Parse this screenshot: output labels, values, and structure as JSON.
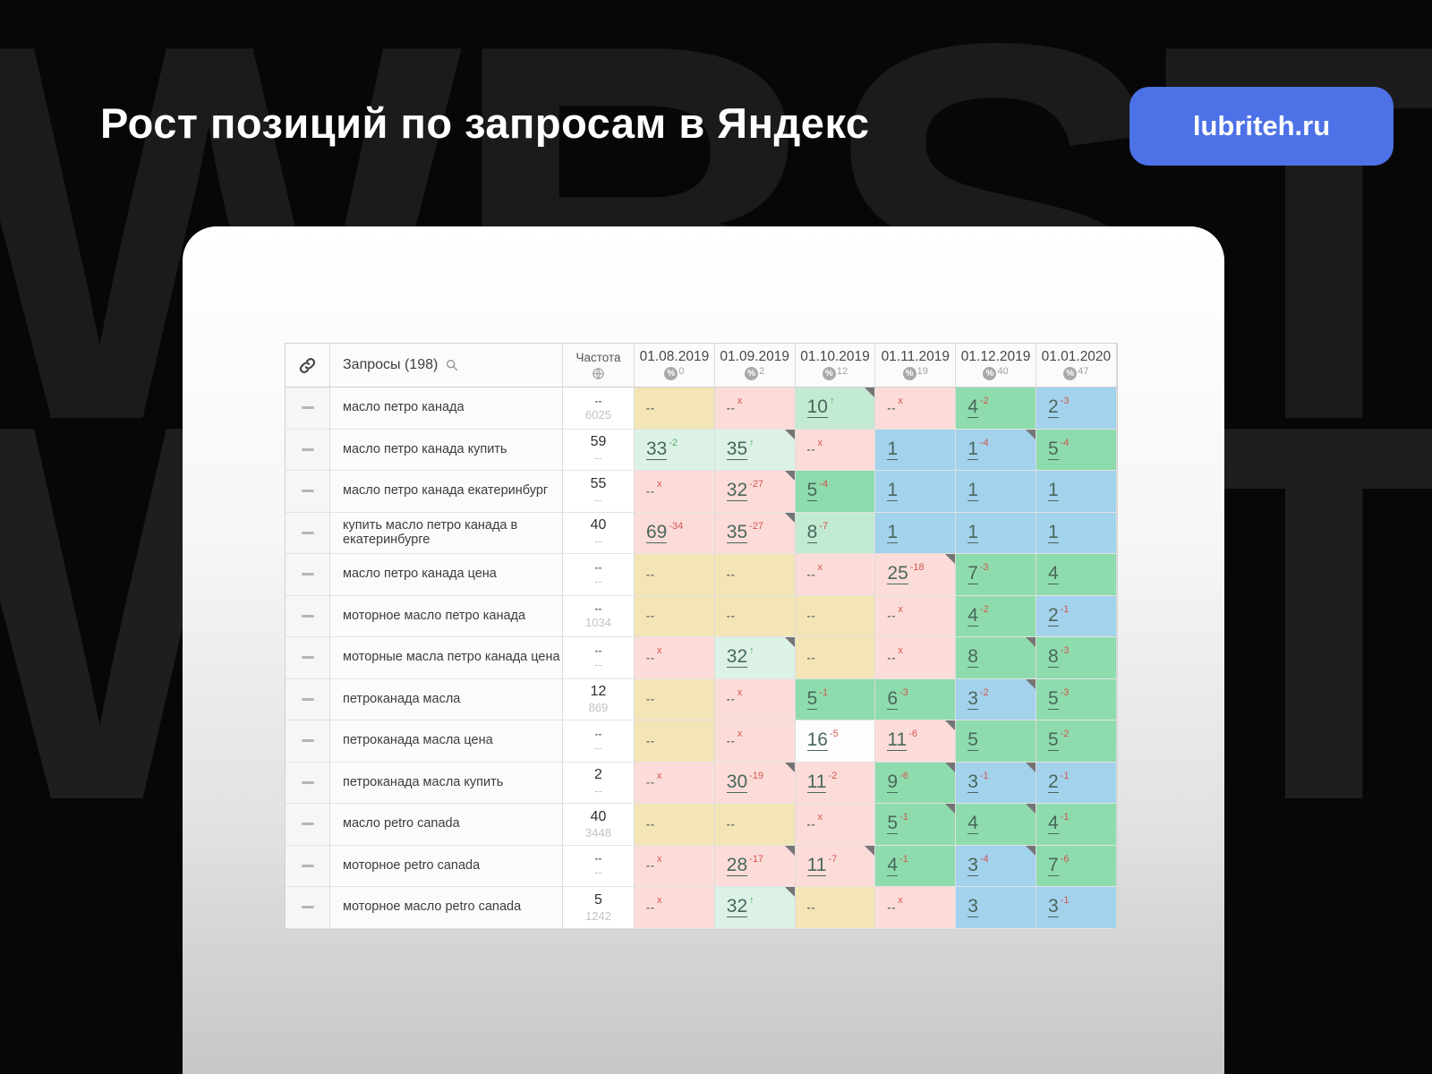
{
  "page": {
    "title": "Рост позиций по запросам в Яндекс",
    "badge": "lubriteh.ru",
    "watermark": "WBSTR",
    "accent_color": "#4d71e6"
  },
  "icons": {
    "link": "link-icon",
    "search": "search-icon",
    "globe": "globe-icon",
    "percent": "percent-icon",
    "row_handle": "row-handle-icon",
    "corner_flag": "corner-flag-marker",
    "up_arrow": "↑"
  },
  "table": {
    "palette": {
      "yellow": "#f3e5b5",
      "pink": "#fcdcd9",
      "mint": "#dcf2e6",
      "soft": "#c3ead2",
      "green": "#8edcad",
      "blue": "#a3d2ec",
      "white": "#fdfdfd"
    },
    "header": {
      "queries_label": "Запросы (198)",
      "freq_label": "Частота",
      "dates": [
        {
          "date": "01.08.2019",
          "percent": "0"
        },
        {
          "date": "01.09.2019",
          "percent": "2"
        },
        {
          "date": "01.10.2019",
          "percent": "12"
        },
        {
          "date": "01.11.2019",
          "percent": "19"
        },
        {
          "date": "01.12.2019",
          "percent": "40"
        },
        {
          "date": "01.01.2020",
          "percent": "47"
        }
      ]
    },
    "rows": [
      {
        "query": "масло петро канада",
        "freq": "--",
        "freq2": "6025",
        "cells": [
          {
            "v": "--",
            "bg": "yellow"
          },
          {
            "v": "--",
            "sup": "x",
            "supc": "red",
            "bg": "pink"
          },
          {
            "v": "10",
            "sup": "↑",
            "supc": "green",
            "bg": "soft",
            "flag": true,
            "link": true
          },
          {
            "v": "--",
            "sup": "x",
            "supc": "red",
            "bg": "pink"
          },
          {
            "v": "4",
            "sup": "-2",
            "supc": "red",
            "bg": "green",
            "tex": true,
            "link": true
          },
          {
            "v": "2",
            "sup": "-3",
            "supc": "red",
            "bg": "blue",
            "link": true
          }
        ]
      },
      {
        "query": "масло петро канада купить",
        "freq": "59",
        "freq2": "--",
        "cells": [
          {
            "v": "33",
            "sup": "-2",
            "supc": "green",
            "bg": "mint",
            "link": true
          },
          {
            "v": "35",
            "sup": "↑",
            "supc": "green",
            "bg": "mint",
            "flag": true,
            "link": true
          },
          {
            "v": "--",
            "sup": "x",
            "supc": "red",
            "bg": "pink"
          },
          {
            "v": "1",
            "bg": "blue",
            "link": true
          },
          {
            "v": "1",
            "sup": "-4",
            "supc": "red",
            "bg": "blue",
            "flag": true,
            "link": true
          },
          {
            "v": "5",
            "sup": "-4",
            "supc": "red",
            "bg": "green",
            "link": true
          }
        ]
      },
      {
        "query": "масло петро канада екатеринбург",
        "freq": "55",
        "freq2": "--",
        "cells": [
          {
            "v": "--",
            "sup": "x",
            "supc": "red",
            "bg": "pink"
          },
          {
            "v": "32",
            "sup": "-27",
            "supc": "red",
            "bg": "pink",
            "flag": true,
            "link": true
          },
          {
            "v": "5",
            "sup": "-4",
            "supc": "red",
            "bg": "green",
            "link": true
          },
          {
            "v": "1",
            "bg": "blue",
            "link": true
          },
          {
            "v": "1",
            "bg": "blue",
            "link": true
          },
          {
            "v": "1",
            "bg": "blue",
            "link": true
          }
        ]
      },
      {
        "query": "купить масло петро канада в екатеринбурге",
        "freq": "40",
        "freq2": "--",
        "cells": [
          {
            "v": "69",
            "sup": "-34",
            "supc": "red",
            "bg": "pink",
            "link": true
          },
          {
            "v": "35",
            "sup": "-27",
            "supc": "red",
            "bg": "pink",
            "flag": true,
            "link": true
          },
          {
            "v": "8",
            "sup": "-7",
            "supc": "red",
            "bg": "soft",
            "link": true
          },
          {
            "v": "1",
            "bg": "blue",
            "link": true
          },
          {
            "v": "1",
            "bg": "blue",
            "link": true
          },
          {
            "v": "1",
            "bg": "blue",
            "link": true
          }
        ]
      },
      {
        "query": "масло петро канада цена",
        "freq": "--",
        "freq2": "--",
        "cells": [
          {
            "v": "--",
            "bg": "yellow"
          },
          {
            "v": "--",
            "bg": "yellow"
          },
          {
            "v": "--",
            "sup": "x",
            "supc": "red",
            "bg": "pink"
          },
          {
            "v": "25",
            "sup": "-18",
            "supc": "red",
            "bg": "pink",
            "flag": true,
            "link": true
          },
          {
            "v": "7",
            "sup": "-3",
            "supc": "red",
            "bg": "green",
            "link": true
          },
          {
            "v": "4",
            "bg": "green",
            "tex": true,
            "link": true
          }
        ]
      },
      {
        "query": "моторное масло петро канада",
        "freq": "--",
        "freq2": "1034",
        "cells": [
          {
            "v": "--",
            "bg": "yellow"
          },
          {
            "v": "--",
            "bg": "yellow"
          },
          {
            "v": "--",
            "bg": "yellow"
          },
          {
            "v": "--",
            "sup": "x",
            "supc": "red",
            "bg": "pink"
          },
          {
            "v": "4",
            "sup": "-2",
            "supc": "red",
            "bg": "green",
            "tex": true,
            "link": true
          },
          {
            "v": "2",
            "sup": "-1",
            "supc": "red",
            "bg": "blue",
            "link": true
          }
        ]
      },
      {
        "query": "моторные масла петро канада цена",
        "freq": "--",
        "freq2": "--",
        "cells": [
          {
            "v": "--",
            "sup": "x",
            "supc": "red",
            "bg": "pink"
          },
          {
            "v": "32",
            "sup": "↑",
            "supc": "green",
            "bg": "mint",
            "flag": true,
            "link": true
          },
          {
            "v": "--",
            "bg": "yellow"
          },
          {
            "v": "--",
            "sup": "x",
            "supc": "red",
            "bg": "pink"
          },
          {
            "v": "8",
            "bg": "green",
            "flag": true,
            "link": true
          },
          {
            "v": "8",
            "sup": "-3",
            "supc": "red",
            "bg": "green",
            "link": true
          }
        ]
      },
      {
        "query": "петроканада масла",
        "freq": "12",
        "freq2": "869",
        "cells": [
          {
            "v": "--",
            "bg": "yellow"
          },
          {
            "v": "--",
            "sup": "x",
            "supc": "red",
            "bg": "pink"
          },
          {
            "v": "5",
            "sup": "-1",
            "supc": "red",
            "bg": "green",
            "link": true
          },
          {
            "v": "6",
            "sup": "-3",
            "supc": "red",
            "bg": "green",
            "link": true
          },
          {
            "v": "3",
            "sup": "-2",
            "supc": "red",
            "bg": "blue",
            "flag": true,
            "link": true
          },
          {
            "v": "5",
            "sup": "-3",
            "supc": "red",
            "bg": "green",
            "link": true
          }
        ]
      },
      {
        "query": "петроканада масла цена",
        "freq": "--",
        "freq2": "--",
        "cells": [
          {
            "v": "--",
            "bg": "yellow"
          },
          {
            "v": "--",
            "sup": "x",
            "supc": "red",
            "bg": "pink"
          },
          {
            "v": "16",
            "sup": "-5",
            "supc": "red",
            "bg": "white",
            "link": true
          },
          {
            "v": "11",
            "sup": "-6",
            "supc": "red",
            "bg": "pink",
            "flag": true,
            "link": true
          },
          {
            "v": "5",
            "bg": "green",
            "link": true
          },
          {
            "v": "5",
            "sup": "-2",
            "supc": "red",
            "bg": "green",
            "link": true
          }
        ]
      },
      {
        "query": "петроканада масла купить",
        "freq": "2",
        "freq2": "--",
        "cells": [
          {
            "v": "--",
            "sup": "x",
            "supc": "red",
            "bg": "pink"
          },
          {
            "v": "30",
            "sup": "-19",
            "supc": "red",
            "bg": "pink",
            "flag": true,
            "link": true
          },
          {
            "v": "11",
            "sup": "-2",
            "supc": "red",
            "bg": "pink",
            "link": true
          },
          {
            "v": "9",
            "sup": "-6",
            "supc": "red",
            "bg": "green",
            "flag": true,
            "link": true
          },
          {
            "v": "3",
            "sup": "-1",
            "supc": "red",
            "bg": "blue",
            "flag": true,
            "link": true
          },
          {
            "v": "2",
            "sup": "-1",
            "supc": "red",
            "bg": "blue",
            "link": true
          }
        ]
      },
      {
        "query": "масло petro canada",
        "freq": "40",
        "freq2": "3448",
        "cells": [
          {
            "v": "--",
            "bg": "yellow"
          },
          {
            "v": "--",
            "bg": "yellow"
          },
          {
            "v": "--",
            "sup": "x",
            "supc": "red",
            "bg": "pink"
          },
          {
            "v": "5",
            "sup": "-1",
            "supc": "red",
            "bg": "green",
            "flag": true,
            "link": true
          },
          {
            "v": "4",
            "bg": "green",
            "tex": true,
            "flag": true,
            "link": true
          },
          {
            "v": "4",
            "sup": "-1",
            "supc": "red",
            "bg": "green",
            "tex": true,
            "link": true
          }
        ]
      },
      {
        "query": "моторное petro canada",
        "freq": "--",
        "freq2": "--",
        "cells": [
          {
            "v": "--",
            "sup": "x",
            "supc": "red",
            "bg": "pink"
          },
          {
            "v": "28",
            "sup": "-17",
            "supc": "red",
            "bg": "pink",
            "flag": true,
            "link": true
          },
          {
            "v": "11",
            "sup": "-7",
            "supc": "red",
            "bg": "pink",
            "flag": true,
            "link": true
          },
          {
            "v": "4",
            "sup": "-1",
            "supc": "red",
            "bg": "green",
            "tex": true,
            "link": true
          },
          {
            "v": "3",
            "sup": "-4",
            "supc": "red",
            "bg": "blue",
            "flag": true,
            "link": true
          },
          {
            "v": "7",
            "sup": "-6",
            "supc": "red",
            "bg": "green",
            "link": true
          }
        ]
      },
      {
        "query": "моторное масло petro canada",
        "freq": "5",
        "freq2": "1242",
        "cells": [
          {
            "v": "--",
            "sup": "x",
            "supc": "red",
            "bg": "pink"
          },
          {
            "v": "32",
            "sup": "↑",
            "supc": "green",
            "bg": "mint",
            "flag": true,
            "link": true
          },
          {
            "v": "--",
            "bg": "yellow"
          },
          {
            "v": "--",
            "sup": "x",
            "supc": "red",
            "bg": "pink"
          },
          {
            "v": "3",
            "bg": "blue",
            "link": true
          },
          {
            "v": "3",
            "sup": "-1",
            "supc": "red",
            "bg": "blue",
            "link": true
          }
        ]
      }
    ]
  }
}
